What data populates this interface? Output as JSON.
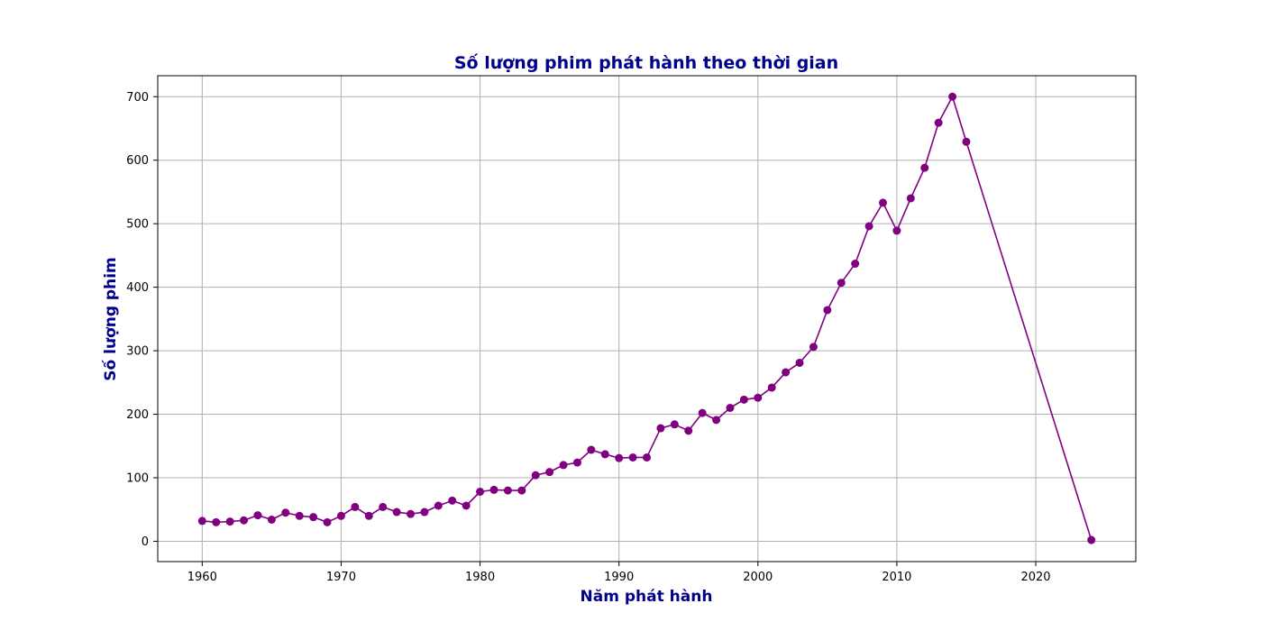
{
  "chart_data": {
    "type": "line",
    "title": "Số lượng phim phát hành theo thời gian",
    "xlabel": "Năm phát hành",
    "ylabel": "Số lượng phim",
    "xlim": [
      1956.8,
      2027.2
    ],
    "ylim": [
      -32,
      733
    ],
    "xticks": [
      1960,
      1970,
      1980,
      1990,
      2000,
      2010,
      2020
    ],
    "yticks": [
      0,
      100,
      200,
      300,
      400,
      500,
      600,
      700
    ],
    "grid": true,
    "series": [
      {
        "color": "#800080",
        "marker": "circle",
        "x": [
          1960,
          1961,
          1962,
          1963,
          1964,
          1965,
          1966,
          1967,
          1968,
          1969,
          1970,
          1971,
          1972,
          1973,
          1974,
          1975,
          1976,
          1977,
          1978,
          1979,
          1980,
          1981,
          1982,
          1983,
          1984,
          1985,
          1986,
          1987,
          1988,
          1989,
          1990,
          1991,
          1992,
          1993,
          1994,
          1995,
          1996,
          1997,
          1998,
          1999,
          2000,
          2001,
          2002,
          2003,
          2004,
          2005,
          2006,
          2007,
          2008,
          2009,
          2010,
          2011,
          2012,
          2013,
          2014,
          2015,
          2024
        ],
        "y": [
          32,
          30,
          31,
          33,
          41,
          34,
          45,
          40,
          38,
          30,
          40,
          54,
          40,
          54,
          46,
          43,
          46,
          56,
          64,
          56,
          78,
          81,
          80,
          80,
          104,
          109,
          120,
          124,
          144,
          137,
          131,
          132,
          132,
          178,
          184,
          174,
          202,
          191,
          210,
          223,
          226,
          242,
          266,
          281,
          306,
          364,
          407,
          437,
          496,
          533,
          489,
          540,
          588,
          659,
          700,
          629,
          2
        ]
      }
    ]
  },
  "colors": {
    "line": "#800080",
    "title": "#00008b",
    "grid": "#b0b0b0",
    "axes": "#000000"
  }
}
